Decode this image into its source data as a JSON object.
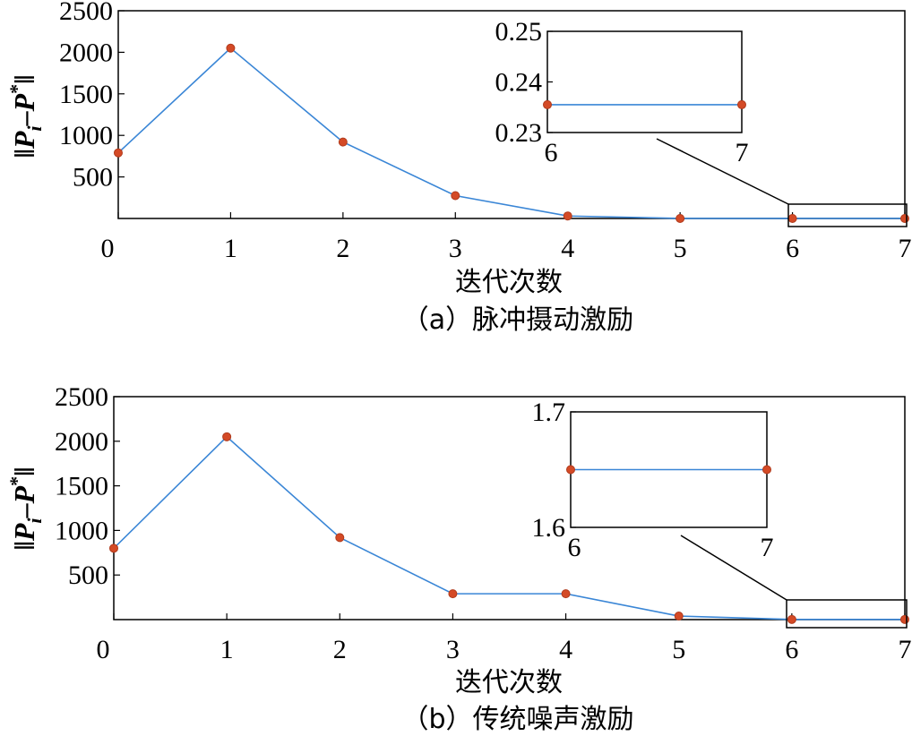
{
  "chart_data": [
    {
      "type": "line",
      "ylabel_parts": {
        "norm": "‖",
        "p1": "P",
        "sub": "i",
        "minus": "–",
        "p2": "P",
        "sup": "*"
      },
      "xlabel": "迭代次数",
      "caption": "（a）脉冲摄动激励",
      "x": [
        0,
        1,
        2,
        3,
        4,
        5,
        6,
        7
      ],
      "y": [
        790,
        2050,
        920,
        275,
        30,
        0.24,
        0.2355,
        0.2355
      ],
      "xlim": [
        0,
        7
      ],
      "ylim": [
        0,
        2500
      ],
      "xticks": [
        "0",
        "1",
        "2",
        "3",
        "4",
        "5",
        "6",
        "7"
      ],
      "yticks": [
        "500",
        "1000",
        "1500",
        "2000",
        "2500"
      ],
      "yticks_values": [
        500,
        1000,
        1500,
        2000,
        2500
      ],
      "line_color": "#3a86d6",
      "marker_color": "#d44a26",
      "inset": {
        "x": [
          6,
          7
        ],
        "y": [
          0.2355,
          0.2355
        ],
        "xlim": [
          6,
          7
        ],
        "ylim": [
          0.23,
          0.25
        ],
        "xticks": [
          "6",
          "7"
        ],
        "yticks": [
          "0.23",
          "0.24",
          "0.25"
        ],
        "yticks_values": [
          0.23,
          0.24,
          0.25
        ]
      }
    },
    {
      "type": "line",
      "ylabel_parts": {
        "norm": "‖",
        "p1": "P",
        "sub": "i",
        "minus": "–",
        "p2": "P",
        "sup": "*"
      },
      "xlabel": "迭代次数",
      "caption": "（b）传统噪声激励",
      "x": [
        0,
        1,
        2,
        3,
        4,
        5,
        6,
        7
      ],
      "y": [
        800,
        2050,
        920,
        290,
        290,
        40,
        1.65,
        1.65
      ],
      "xlim": [
        0,
        7
      ],
      "ylim": [
        0,
        2500
      ],
      "xticks": [
        "0",
        "1",
        "2",
        "3",
        "4",
        "5",
        "6",
        "7"
      ],
      "yticks": [
        "500",
        "1000",
        "1500",
        "2000",
        "2500"
      ],
      "yticks_values": [
        500,
        1000,
        1500,
        2000,
        2500
      ],
      "line_color": "#3a86d6",
      "marker_color": "#d44a26",
      "inset": {
        "x": [
          6,
          7
        ],
        "y": [
          1.65,
          1.65
        ],
        "xlim": [
          6,
          7
        ],
        "ylim": [
          1.6,
          1.7
        ],
        "xticks": [
          "6",
          "7"
        ],
        "yticks": [
          "1.6",
          "1.7"
        ],
        "yticks_values": [
          1.6,
          1.7
        ]
      }
    }
  ]
}
